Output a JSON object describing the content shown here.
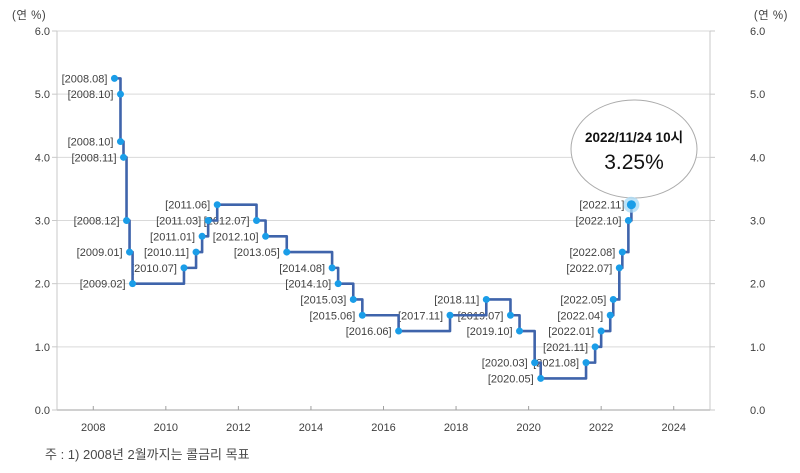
{
  "chart_data": {
    "type": "line",
    "step": "after",
    "x_ticks": [
      "2008",
      "2010",
      "2012",
      "2014",
      "2016",
      "2018",
      "2020",
      "2022",
      "2024"
    ],
    "y_ticks_left": [
      "6.0",
      "5.0",
      "4.0",
      "3.0",
      "2.0",
      "1.0",
      "0.0"
    ],
    "y_ticks_right": [
      "6.0",
      "5.0",
      "4.0",
      "3.0",
      "2.0",
      "1.0",
      "0.0"
    ],
    "xlim": [
      2007,
      2025
    ],
    "ylim": [
      0.0,
      6.0
    ],
    "unit_left": "(연 %)",
    "unit_right": "(연 %)",
    "grid": "horizontal",
    "legend": "none",
    "highlight_last_point": true,
    "points": [
      {
        "label": "[2008.08]",
        "value": 5.25
      },
      {
        "label": "[2008.10]",
        "value": 5.0
      },
      {
        "label": "[2008.10]",
        "value": 4.25
      },
      {
        "label": "[2008.11]",
        "value": 4.0
      },
      {
        "label": "[2008.12]",
        "value": 3.0
      },
      {
        "label": "[2009.01]",
        "value": 2.5
      },
      {
        "label": "[2009.02]",
        "value": 2.0
      },
      {
        "label": "[2010.07]",
        "value": 2.25
      },
      {
        "label": "[2010.11]",
        "value": 2.5
      },
      {
        "label": "[2011.01]",
        "value": 2.75
      },
      {
        "label": "[2011.03]",
        "value": 3.0
      },
      {
        "label": "[2011.06]",
        "value": 3.25
      },
      {
        "label": "[2012.07]",
        "value": 3.0
      },
      {
        "label": "[2012.10]",
        "value": 2.75
      },
      {
        "label": "[2013.05]",
        "value": 2.5
      },
      {
        "label": "[2014.08]",
        "value": 2.25
      },
      {
        "label": "[2014.10]",
        "value": 2.0
      },
      {
        "label": "[2015.03]",
        "value": 1.75
      },
      {
        "label": "[2015.06]",
        "value": 1.5
      },
      {
        "label": "[2016.06]",
        "value": 1.25
      },
      {
        "label": "[2017.11]",
        "value": 1.5
      },
      {
        "label": "[2018.11]",
        "value": 1.75
      },
      {
        "label": "[2019.07]",
        "value": 1.5
      },
      {
        "label": "[2019.10]",
        "value": 1.25
      },
      {
        "label": "[2020.03]",
        "value": 0.75
      },
      {
        "label": "[2020.05]",
        "value": 0.5
      },
      {
        "label": "[2021.08]",
        "value": 0.75
      },
      {
        "label": "[2021.11]",
        "value": 1.0
      },
      {
        "label": "[2022.01]",
        "value": 1.25
      },
      {
        "label": "[2022.04]",
        "value": 1.5
      },
      {
        "label": "[2022.05]",
        "value": 1.75
      },
      {
        "label": "[2022.07]",
        "value": 2.25
      },
      {
        "label": "[2022.08]",
        "value": 2.5
      },
      {
        "label": "[2022.10]",
        "value": 3.0
      },
      {
        "label": "[2022.11]",
        "value": 3.25
      }
    ]
  },
  "callout": {
    "line1": "2022/11/24 10시",
    "line2": "3.25%"
  },
  "footnote": "주 : 1) 2008년 2월까지는 콜금리 목표",
  "colors": {
    "line": "#3f64ab",
    "marker": "#1a9de8",
    "marker_halo": "#a7d9f5",
    "grid": "#d9d9d9",
    "plot_border": "#c9c9c9",
    "axis": "#a0a0a0",
    "tick_text": "#3f3f3f",
    "point_label_text": "#404040",
    "callout_border": "#ababab",
    "callout_fill": "#ffffff"
  }
}
